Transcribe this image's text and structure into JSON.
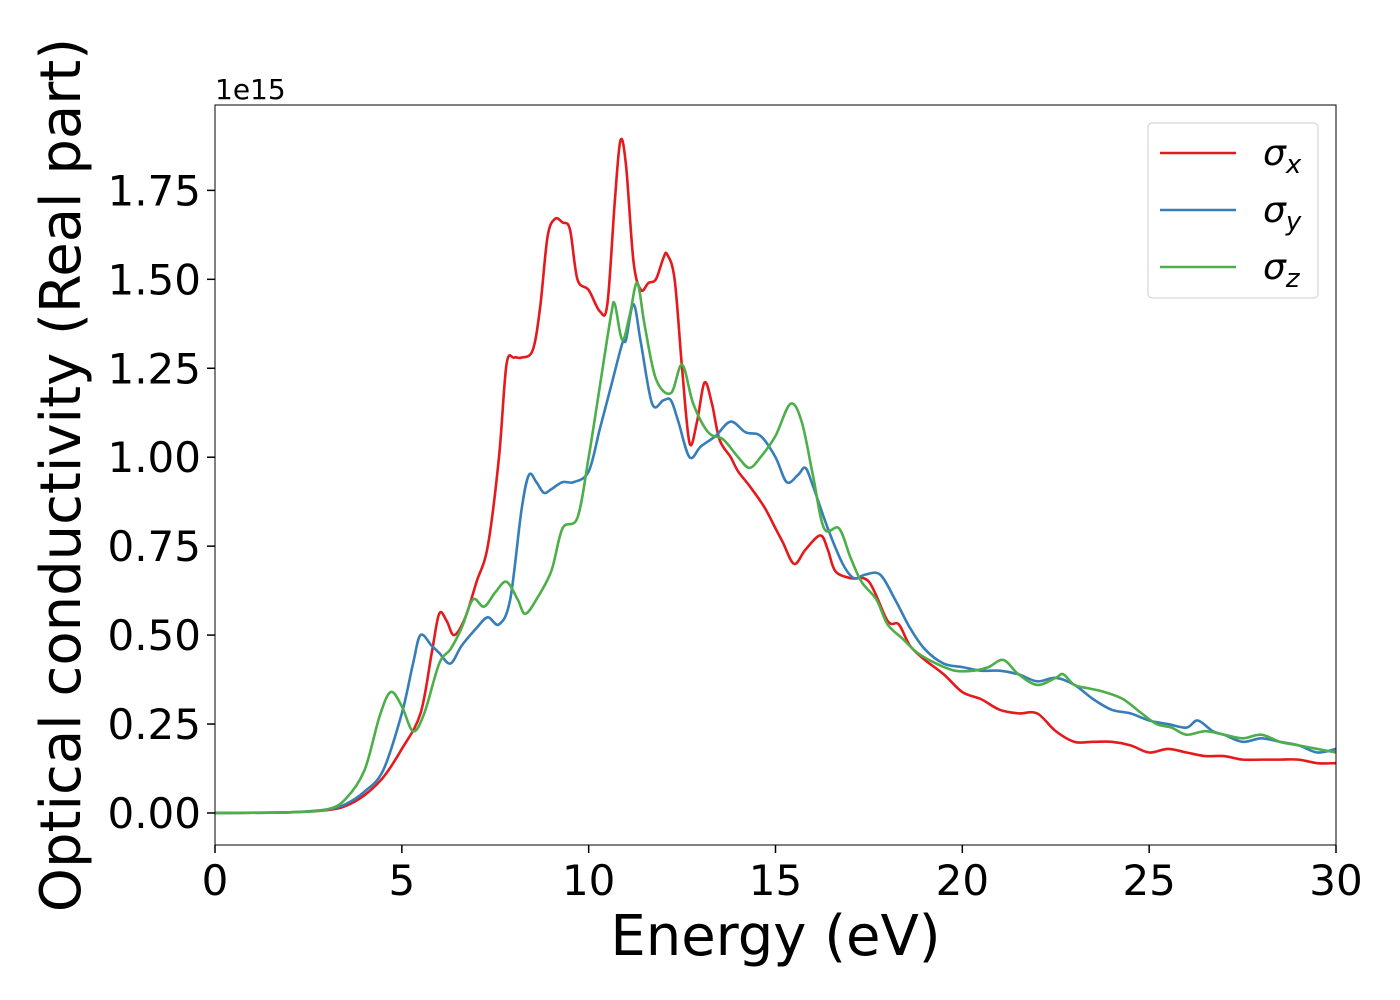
{
  "chart_data": {
    "type": "line",
    "xlabel": "Energy (eV)",
    "ylabel": "Optical conductivity (Real part)",
    "y_offset_text": "1e15",
    "y_scale_factor": 1000000000000000.0,
    "xlim": [
      0,
      30
    ],
    "ylim": [
      -0.09,
      1.99
    ],
    "xticks": [
      0,
      5,
      10,
      15,
      20,
      25,
      30
    ],
    "xtick_labels": [
      "0",
      "5",
      "10",
      "15",
      "20",
      "25",
      "30"
    ],
    "yticks": [
      0,
      0.25,
      0.5,
      0.75,
      1.0,
      1.25,
      1.5,
      1.75
    ],
    "ytick_labels": [
      "0.00",
      "0.25",
      "0.50",
      "0.75",
      "1.00",
      "1.25",
      "1.50",
      "1.75"
    ],
    "grid": false,
    "legend_position": "top-right",
    "series": [
      {
        "name": "σx",
        "base": "σ",
        "sub": "x",
        "color": "#e41a1c",
        "points": [
          [
            0,
            0
          ],
          [
            2,
            0.002
          ],
          [
            3,
            0.008
          ],
          [
            3.5,
            0.02
          ],
          [
            4,
            0.05
          ],
          [
            4.5,
            0.1
          ],
          [
            5,
            0.18
          ],
          [
            5.5,
            0.28
          ],
          [
            5.8,
            0.45
          ],
          [
            6,
            0.56
          ],
          [
            6.2,
            0.54
          ],
          [
            6.4,
            0.5
          ],
          [
            6.7,
            0.55
          ],
          [
            7,
            0.65
          ],
          [
            7.3,
            0.75
          ],
          [
            7.6,
            1.0
          ],
          [
            7.8,
            1.26
          ],
          [
            8,
            1.28
          ],
          [
            8.2,
            1.28
          ],
          [
            8.5,
            1.3
          ],
          [
            8.7,
            1.42
          ],
          [
            8.9,
            1.62
          ],
          [
            9.1,
            1.67
          ],
          [
            9.3,
            1.66
          ],
          [
            9.5,
            1.64
          ],
          [
            9.7,
            1.5
          ],
          [
            10,
            1.47
          ],
          [
            10.3,
            1.41
          ],
          [
            10.5,
            1.43
          ],
          [
            10.7,
            1.72
          ],
          [
            10.85,
            1.89
          ],
          [
            11.0,
            1.82
          ],
          [
            11.2,
            1.55
          ],
          [
            11.4,
            1.47
          ],
          [
            11.6,
            1.49
          ],
          [
            11.8,
            1.5
          ],
          [
            12,
            1.56
          ],
          [
            12.1,
            1.57
          ],
          [
            12.3,
            1.5
          ],
          [
            12.5,
            1.25
          ],
          [
            12.7,
            1.04
          ],
          [
            12.9,
            1.1
          ],
          [
            13.1,
            1.21
          ],
          [
            13.3,
            1.15
          ],
          [
            13.5,
            1.05
          ],
          [
            13.8,
            1.0
          ],
          [
            14,
            0.96
          ],
          [
            14.3,
            0.92
          ],
          [
            14.7,
            0.86
          ],
          [
            15,
            0.8
          ],
          [
            15.2,
            0.76
          ],
          [
            15.5,
            0.7
          ],
          [
            15.8,
            0.74
          ],
          [
            16.2,
            0.78
          ],
          [
            16.4,
            0.74
          ],
          [
            16.6,
            0.68
          ],
          [
            17,
            0.66
          ],
          [
            17.5,
            0.65
          ],
          [
            18,
            0.54
          ],
          [
            18.3,
            0.53
          ],
          [
            18.6,
            0.47
          ],
          [
            19,
            0.43
          ],
          [
            19.5,
            0.39
          ],
          [
            20,
            0.34
          ],
          [
            20.5,
            0.32
          ],
          [
            21,
            0.29
          ],
          [
            21.5,
            0.28
          ],
          [
            22,
            0.28
          ],
          [
            22.5,
            0.23
          ],
          [
            23,
            0.2
          ],
          [
            23.5,
            0.2
          ],
          [
            24,
            0.2
          ],
          [
            24.5,
            0.19
          ],
          [
            25,
            0.17
          ],
          [
            25.5,
            0.18
          ],
          [
            26,
            0.17
          ],
          [
            26.5,
            0.16
          ],
          [
            27,
            0.16
          ],
          [
            27.5,
            0.15
          ],
          [
            28,
            0.15
          ],
          [
            28.5,
            0.15
          ],
          [
            29,
            0.15
          ],
          [
            29.5,
            0.14
          ],
          [
            30,
            0.14
          ]
        ]
      },
      {
        "name": "σy",
        "base": "σ",
        "sub": "y",
        "color": "#377eb8",
        "points": [
          [
            0,
            0
          ],
          [
            2,
            0.002
          ],
          [
            3,
            0.01
          ],
          [
            3.5,
            0.025
          ],
          [
            4,
            0.06
          ],
          [
            4.5,
            0.12
          ],
          [
            5,
            0.28
          ],
          [
            5.3,
            0.42
          ],
          [
            5.5,
            0.5
          ],
          [
            5.8,
            0.47
          ],
          [
            6,
            0.45
          ],
          [
            6.3,
            0.42
          ],
          [
            6.6,
            0.47
          ],
          [
            7,
            0.52
          ],
          [
            7.3,
            0.55
          ],
          [
            7.6,
            0.53
          ],
          [
            7.9,
            0.6
          ],
          [
            8.2,
            0.85
          ],
          [
            8.4,
            0.95
          ],
          [
            8.6,
            0.93
          ],
          [
            8.8,
            0.9
          ],
          [
            9,
            0.91
          ],
          [
            9.3,
            0.93
          ],
          [
            9.6,
            0.93
          ],
          [
            10,
            0.96
          ],
          [
            10.3,
            1.08
          ],
          [
            10.6,
            1.2
          ],
          [
            10.9,
            1.32
          ],
          [
            11.0,
            1.33
          ],
          [
            11.2,
            1.43
          ],
          [
            11.4,
            1.32
          ],
          [
            11.7,
            1.15
          ],
          [
            12,
            1.16
          ],
          [
            12.2,
            1.16
          ],
          [
            12.4,
            1.1
          ],
          [
            12.7,
            1.0
          ],
          [
            13,
            1.03
          ],
          [
            13.4,
            1.06
          ],
          [
            13.8,
            1.1
          ],
          [
            14.2,
            1.07
          ],
          [
            14.6,
            1.06
          ],
          [
            15,
            1.0
          ],
          [
            15.3,
            0.93
          ],
          [
            15.6,
            0.95
          ],
          [
            15.8,
            0.97
          ],
          [
            16,
            0.92
          ],
          [
            16.4,
            0.8
          ],
          [
            16.8,
            0.7
          ],
          [
            17.1,
            0.66
          ],
          [
            17.4,
            0.67
          ],
          [
            17.8,
            0.67
          ],
          [
            18.2,
            0.6
          ],
          [
            18.6,
            0.52
          ],
          [
            19,
            0.46
          ],
          [
            19.5,
            0.42
          ],
          [
            20,
            0.41
          ],
          [
            20.5,
            0.4
          ],
          [
            21,
            0.4
          ],
          [
            21.5,
            0.39
          ],
          [
            22,
            0.37
          ],
          [
            22.5,
            0.38
          ],
          [
            23,
            0.36
          ],
          [
            23.5,
            0.32
          ],
          [
            24,
            0.29
          ],
          [
            24.5,
            0.28
          ],
          [
            25,
            0.26
          ],
          [
            25.5,
            0.25
          ],
          [
            26,
            0.24
          ],
          [
            26.3,
            0.26
          ],
          [
            26.7,
            0.23
          ],
          [
            27,
            0.22
          ],
          [
            27.5,
            0.2
          ],
          [
            28,
            0.21
          ],
          [
            28.5,
            0.2
          ],
          [
            29,
            0.19
          ],
          [
            29.5,
            0.17
          ],
          [
            30,
            0.18
          ]
        ]
      },
      {
        "name": "σz",
        "base": "σ",
        "sub": "z",
        "color": "#4daf4a",
        "points": [
          [
            0,
            0
          ],
          [
            2,
            0.002
          ],
          [
            3,
            0.01
          ],
          [
            3.5,
            0.04
          ],
          [
            4,
            0.12
          ],
          [
            4.4,
            0.27
          ],
          [
            4.7,
            0.34
          ],
          [
            5,
            0.3
          ],
          [
            5.3,
            0.23
          ],
          [
            5.6,
            0.28
          ],
          [
            6,
            0.42
          ],
          [
            6.3,
            0.46
          ],
          [
            6.6,
            0.52
          ],
          [
            6.9,
            0.6
          ],
          [
            7.2,
            0.58
          ],
          [
            7.5,
            0.62
          ],
          [
            7.8,
            0.65
          ],
          [
            8.1,
            0.6
          ],
          [
            8.3,
            0.56
          ],
          [
            8.6,
            0.6
          ],
          [
            9,
            0.68
          ],
          [
            9.3,
            0.8
          ],
          [
            9.7,
            0.83
          ],
          [
            10,
            1.0
          ],
          [
            10.3,
            1.2
          ],
          [
            10.6,
            1.4
          ],
          [
            10.7,
            1.43
          ],
          [
            10.9,
            1.33
          ],
          [
            11.1,
            1.4
          ],
          [
            11.3,
            1.49
          ],
          [
            11.5,
            1.37
          ],
          [
            11.8,
            1.22
          ],
          [
            12.2,
            1.18
          ],
          [
            12.5,
            1.26
          ],
          [
            12.8,
            1.15
          ],
          [
            13.2,
            1.07
          ],
          [
            13.6,
            1.05
          ],
          [
            14,
            1.0
          ],
          [
            14.3,
            0.97
          ],
          [
            14.6,
            1.0
          ],
          [
            15,
            1.06
          ],
          [
            15.4,
            1.15
          ],
          [
            15.7,
            1.1
          ],
          [
            16,
            0.95
          ],
          [
            16.3,
            0.8
          ],
          [
            16.7,
            0.8
          ],
          [
            17,
            0.72
          ],
          [
            17.3,
            0.65
          ],
          [
            17.7,
            0.6
          ],
          [
            18,
            0.53
          ],
          [
            18.4,
            0.49
          ],
          [
            18.8,
            0.45
          ],
          [
            19.3,
            0.42
          ],
          [
            19.8,
            0.4
          ],
          [
            20.3,
            0.4
          ],
          [
            20.7,
            0.41
          ],
          [
            21.1,
            0.43
          ],
          [
            21.5,
            0.39
          ],
          [
            22,
            0.36
          ],
          [
            22.5,
            0.38
          ],
          [
            22.7,
            0.39
          ],
          [
            23,
            0.36
          ],
          [
            23.4,
            0.35
          ],
          [
            23.8,
            0.34
          ],
          [
            24.3,
            0.32
          ],
          [
            24.8,
            0.28
          ],
          [
            25.2,
            0.25
          ],
          [
            25.6,
            0.24
          ],
          [
            26,
            0.22
          ],
          [
            26.5,
            0.23
          ],
          [
            27,
            0.22
          ],
          [
            27.5,
            0.21
          ],
          [
            28,
            0.22
          ],
          [
            28.5,
            0.2
          ],
          [
            29,
            0.19
          ],
          [
            29.5,
            0.18
          ],
          [
            30,
            0.17
          ]
        ]
      }
    ]
  }
}
